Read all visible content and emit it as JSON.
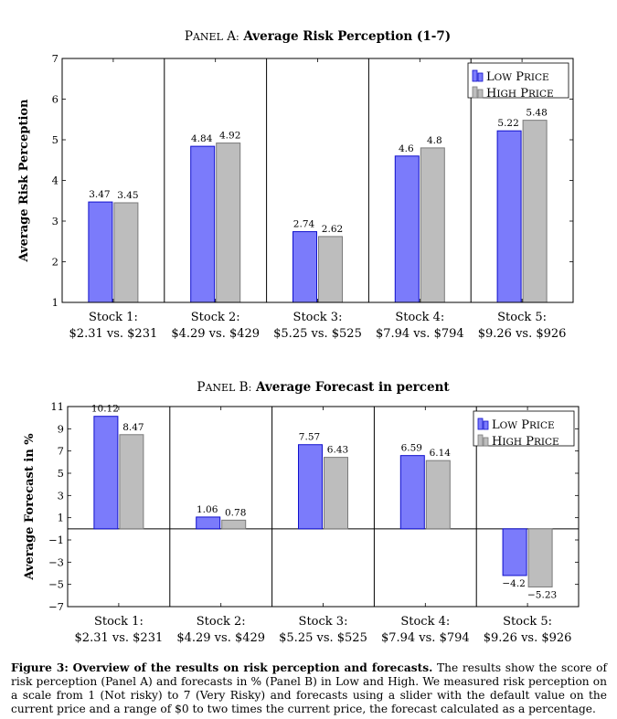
{
  "colors": {
    "low": "#7b7bfb",
    "low_edge": "#1010cc",
    "high": "#bdbdbd",
    "high_edge": "#7a7a7a"
  },
  "caption": {
    "label": "Figure 3:",
    "bold_text": "Overview of the results on risk perception and forecasts.",
    "body": "The results show the score of risk perception (Panel A) and forecasts in % (Panel B) in Low and High. We measured risk perception on a scale from 1 (Not risky) to 7 (Very Risky) and forecasts using a slider with the default value on the current price and a range of $0 to two times the current price, the forecast calculated as a percentage."
  },
  "chart_data": [
    {
      "type": "bar",
      "panel_label": "Panel A:",
      "title": "Average Risk Perception (1-7)",
      "ylabel": "Average Risk Perception",
      "xlabel": "",
      "ylim": [
        1,
        7
      ],
      "yticks": [
        1,
        2,
        3,
        4,
        5,
        6,
        7
      ],
      "grid": false,
      "legend_position": "top-right",
      "categories": [
        "Stock 1:",
        "Stock 2:",
        "Stock 3:",
        "Stock 4:",
        "Stock 5:"
      ],
      "category_prices": [
        "$2.31 vs. $231",
        "$4.29 vs. $429",
        "$5.25 vs. $525",
        "$7.94 vs. $794",
        "$9.26 vs. $926"
      ],
      "series": [
        {
          "name": "Low Price",
          "values": [
            3.47,
            4.84,
            2.74,
            4.6,
            5.22
          ],
          "labels": [
            "3.47",
            "4.84",
            "2.74",
            "4.6",
            "5.22"
          ]
        },
        {
          "name": "High Price",
          "values": [
            3.45,
            4.92,
            2.62,
            4.8,
            5.48
          ],
          "labels": [
            "3.45",
            "4.92",
            "2.62",
            "4.8",
            "5.48"
          ]
        }
      ]
    },
    {
      "type": "bar",
      "panel_label": "Panel B:",
      "title": "Average Forecast in percent",
      "ylabel": "Average Forecast in %",
      "xlabel": "",
      "ylim": [
        -7,
        11
      ],
      "yticks": [
        -7,
        -5,
        -3,
        -1,
        1,
        3,
        5,
        7,
        9,
        11
      ],
      "ytick_labels": [
        "−7",
        "−5",
        "−3",
        "−1",
        "1",
        "3",
        "5",
        "7",
        "9",
        "11"
      ],
      "baseline": 0,
      "grid": false,
      "legend_position": "top-right",
      "categories": [
        "Stock 1:",
        "Stock 2:",
        "Stock 3:",
        "Stock 4:",
        "Stock 5:"
      ],
      "category_prices": [
        "$2.31 vs. $231",
        "$4.29 vs. $429",
        "$5.25 vs. $525",
        "$7.94 vs. $794",
        "$9.26 vs. $926"
      ],
      "series": [
        {
          "name": "Low Price",
          "values": [
            10.12,
            1.06,
            7.57,
            6.59,
            -4.2
          ],
          "labels": [
            "10.12",
            "1.06",
            "7.57",
            "6.59",
            "−4.2"
          ]
        },
        {
          "name": "High Price",
          "values": [
            8.47,
            0.78,
            6.43,
            6.14,
            -5.23
          ],
          "labels": [
            "8.47",
            "0.78",
            "6.43",
            "6.14",
            "−5.23"
          ]
        }
      ]
    }
  ]
}
